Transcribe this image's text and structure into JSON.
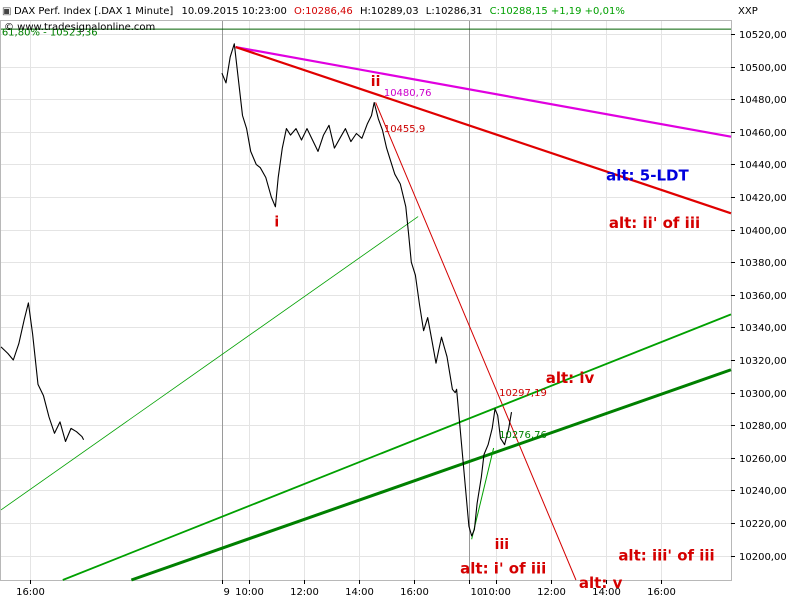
{
  "header": {
    "name": "DAX Perf. Index [.DAX  1 Minute]",
    "datetime": "10.09.2015 10:23:00",
    "open": "O:10286,46",
    "high": "H:10289,03",
    "low": "L:10286,31",
    "close": "C:10288,15 +1,19 +0,01%",
    "watermark": "© www.tradesignalonline.com",
    "right_label": "XXP",
    "colors": {
      "open": "#d40000",
      "close": "#00a000",
      "text": "#000000"
    }
  },
  "chart_data": {
    "type": "line",
    "ylim": [
      10185,
      10528
    ],
    "yticks": [
      10200,
      10220,
      10240,
      10260,
      10280,
      10300,
      10320,
      10340,
      10360,
      10380,
      10400,
      10420,
      10440,
      10460,
      10480,
      10500,
      10520
    ],
    "ytick_labels": [
      "10200,00",
      "10220,00",
      "10240,00",
      "10260,00",
      "10280,00",
      "10300,00",
      "10320,00",
      "10340,00",
      "10360,00",
      "10380,00",
      "10400,00",
      "10420,00",
      "10440,00",
      "10460,00",
      "10480,00",
      "10500,00",
      "10520,00"
    ],
    "xticks": [
      {
        "label": "16:00",
        "t": 2
      },
      {
        "label": "9",
        "t": 9
      },
      {
        "label": "10:00",
        "t": 10
      },
      {
        "label": "12:00",
        "t": 12
      },
      {
        "label": "14:00",
        "t": 14
      },
      {
        "label": "16:00",
        "t": 16
      },
      {
        "label": "10",
        "t": 18
      },
      {
        "label": "10:00",
        "t": 19
      },
      {
        "label": "12:00",
        "t": 21
      },
      {
        "label": "14:00",
        "t": 23
      },
      {
        "label": "16:00",
        "t": 25
      }
    ],
    "day_separators": [
      9,
      18
    ],
    "xlim": [
      0.95,
      27.55
    ],
    "price": [
      [
        0.95,
        10328
      ],
      [
        1.2,
        10324
      ],
      [
        1.4,
        10320
      ],
      [
        1.6,
        10330
      ],
      [
        1.8,
        10345
      ],
      [
        1.95,
        10355
      ],
      [
        2.1,
        10336
      ],
      [
        2.3,
        10305
      ],
      [
        2.5,
        10298
      ],
      [
        2.7,
        10285
      ],
      [
        2.9,
        10275
      ],
      [
        3.1,
        10282
      ],
      [
        3.3,
        10270
      ],
      [
        3.5,
        10278
      ],
      [
        3.7,
        10276
      ],
      [
        3.9,
        10273
      ],
      [
        3.96,
        10271
      ],
      [
        9.0,
        10496
      ],
      [
        9.15,
        10490
      ],
      [
        9.3,
        10506
      ],
      [
        9.45,
        10514
      ],
      [
        9.6,
        10492
      ],
      [
        9.75,
        10470
      ],
      [
        9.9,
        10462
      ],
      [
        10.05,
        10448
      ],
      [
        10.25,
        10440
      ],
      [
        10.4,
        10438
      ],
      [
        10.6,
        10432
      ],
      [
        10.8,
        10420
      ],
      [
        10.95,
        10414
      ],
      [
        11.05,
        10432
      ],
      [
        11.2,
        10450
      ],
      [
        11.35,
        10462
      ],
      [
        11.5,
        10458
      ],
      [
        11.7,
        10462
      ],
      [
        11.9,
        10455
      ],
      [
        12.1,
        10462
      ],
      [
        12.3,
        10455
      ],
      [
        12.5,
        10448
      ],
      [
        12.7,
        10458
      ],
      [
        12.9,
        10464
      ],
      [
        13.1,
        10450
      ],
      [
        13.3,
        10456
      ],
      [
        13.5,
        10462
      ],
      [
        13.7,
        10454
      ],
      [
        13.9,
        10459
      ],
      [
        14.1,
        10456
      ],
      [
        14.3,
        10465
      ],
      [
        14.45,
        10470
      ],
      [
        14.55,
        10478
      ],
      [
        14.7,
        10468
      ],
      [
        14.85,
        10461
      ],
      [
        15.0,
        10450
      ],
      [
        15.15,
        10442
      ],
      [
        15.3,
        10434
      ],
      [
        15.5,
        10428
      ],
      [
        15.7,
        10414
      ],
      [
        15.8,
        10398
      ],
      [
        15.9,
        10380
      ],
      [
        16.05,
        10372
      ],
      [
        16.2,
        10354
      ],
      [
        16.35,
        10338
      ],
      [
        16.5,
        10346
      ],
      [
        16.65,
        10332
      ],
      [
        16.8,
        10318
      ],
      [
        16.9,
        10326
      ],
      [
        17.0,
        10334
      ],
      [
        17.1,
        10328
      ],
      [
        17.2,
        10322
      ],
      [
        17.3,
        10312
      ],
      [
        17.4,
        10302
      ],
      [
        17.5,
        10300
      ],
      [
        17.55,
        10302
      ],
      [
        18.0,
        10218
      ],
      [
        18.1,
        10212
      ],
      [
        18.2,
        10216
      ],
      [
        18.3,
        10232
      ],
      [
        18.45,
        10248
      ],
      [
        18.55,
        10262
      ],
      [
        18.7,
        10268
      ],
      [
        18.85,
        10278
      ],
      [
        18.95,
        10290
      ],
      [
        19.05,
        10286
      ],
      [
        19.15,
        10272
      ],
      [
        19.3,
        10268
      ],
      [
        19.45,
        10278
      ],
      [
        19.55,
        10288
      ]
    ],
    "lines": [
      {
        "name": "magenta",
        "color": "#e000e0",
        "width": 2.2,
        "pts": [
          [
            9.5,
            10512
          ],
          [
            27.55,
            10457
          ]
        ]
      },
      {
        "name": "red-trend",
        "color": "#e00000",
        "width": 2.2,
        "pts": [
          [
            9.5,
            10512
          ],
          [
            27.55,
            10410
          ]
        ]
      },
      {
        "name": "red-thin",
        "color": "#d40000",
        "width": 1,
        "pts": [
          [
            14.6,
            10478
          ],
          [
            21.9,
            10185
          ]
        ]
      },
      {
        "name": "green-upper",
        "color": "#00a000",
        "width": 1.8,
        "pts": [
          [
            3.2,
            10185
          ],
          [
            27.55,
            10348
          ]
        ]
      },
      {
        "name": "green-lower",
        "color": "#008000",
        "width": 3,
        "pts": [
          [
            5.7,
            10185
          ],
          [
            27.55,
            10314
          ]
        ]
      },
      {
        "name": "green-thin",
        "color": "#00a000",
        "width": 0.8,
        "pts": [
          [
            0.95,
            10228
          ],
          [
            16.15,
            10408
          ]
        ]
      },
      {
        "name": "green-short",
        "color": "#00a000",
        "width": 1,
        "pts": [
          [
            18.1,
            10210
          ],
          [
            18.9,
            10266
          ]
        ]
      },
      {
        "name": "fib-level",
        "color": "#006000",
        "width": 1,
        "pts": [
          [
            0.95,
            10523
          ],
          [
            27.55,
            10523
          ]
        ]
      }
    ],
    "annotations": [
      {
        "text": "61,80% - 10523,36",
        "x": 0.98,
        "y": 10519,
        "color": "#008000",
        "size": 10,
        "bold": false,
        "anchor": "start"
      },
      {
        "text": "10480,76",
        "x": 14.9,
        "y": 10482,
        "color": "#cc00cc",
        "size": 10,
        "bold": false,
        "anchor": "start"
      },
      {
        "text": "10455,9",
        "x": 14.9,
        "y": 10460,
        "color": "#cc0000",
        "size": 10,
        "bold": false,
        "anchor": "start"
      },
      {
        "text": "10297,19",
        "x": 19.1,
        "y": 10298,
        "color": "#cc0000",
        "size": 10,
        "bold": false,
        "anchor": "start"
      },
      {
        "text": "10276,76",
        "x": 19.1,
        "y": 10272,
        "color": "#008000",
        "size": 10,
        "bold": false,
        "anchor": "start"
      },
      {
        "text": "i",
        "x": 11.0,
        "y": 10402,
        "color": "#d40000",
        "size": 14,
        "bold": true,
        "anchor": "middle"
      },
      {
        "text": "ii",
        "x": 14.6,
        "y": 10488,
        "color": "#d40000",
        "size": 14,
        "bold": true,
        "anchor": "middle"
      },
      {
        "text": "alt: 5-LDT",
        "x": 23.0,
        "y": 10430,
        "color": "#0000dd",
        "size": 15,
        "bold": true,
        "anchor": "start"
      },
      {
        "text": "alt: ii' of iii",
        "x": 23.1,
        "y": 10401,
        "color": "#d40000",
        "size": 15,
        "bold": true,
        "anchor": "start"
      },
      {
        "text": "alt: iv",
        "x": 20.8,
        "y": 10306,
        "color": "#d40000",
        "size": 15,
        "bold": true,
        "anchor": "start"
      },
      {
        "text": "iii",
        "x": 19.2,
        "y": 10204,
        "color": "#d40000",
        "size": 14,
        "bold": true,
        "anchor": "middle"
      },
      {
        "text": "alt: i' of iii",
        "x": 19.25,
        "y": 10189,
        "color": "#d40000",
        "size": 15,
        "bold": true,
        "anchor": "middle"
      },
      {
        "text": "alt: iii' of iii",
        "x": 25.2,
        "y": 10197,
        "color": "#d40000",
        "size": 15,
        "bold": true,
        "anchor": "middle"
      },
      {
        "text": "alt: v",
        "x": 22.8,
        "y": 10180,
        "color": "#d40000",
        "size": 15,
        "bold": true,
        "anchor": "middle"
      }
    ]
  }
}
